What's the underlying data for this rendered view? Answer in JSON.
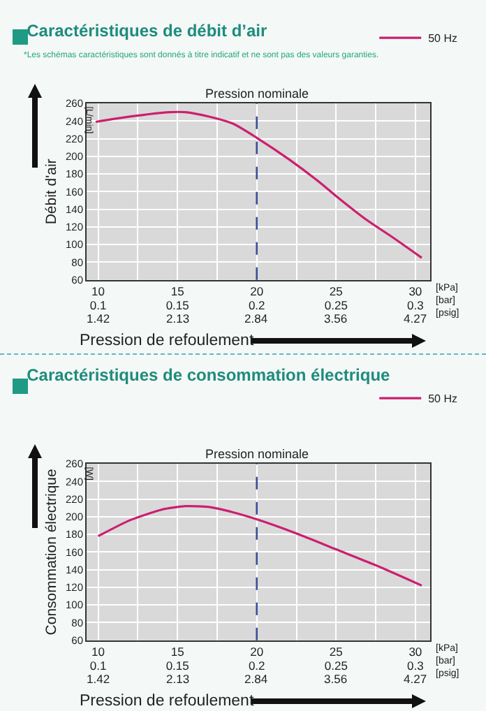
{
  "chart_data": [
    {
      "type": "line",
      "title": "Caractéristiques de débit d’air",
      "xlabel": "Pression de refoulement",
      "ylabel": "Débit d'air",
      "annotations": [
        "*Les schémas caractéristiques sont donnés à titre indicatif et ne sont pas des valeurs garanties.",
        "[L/min]",
        "[kPa]\n[bar]\n[psig]",
        "1.42",
        "2.13",
        "2.84",
        "3.56",
        "4.27"
      ],
      "x": [
        9.85,
        12,
        14.5,
        15.5,
        17,
        18.5,
        20,
        22,
        24,
        25,
        27,
        28.5,
        30.4
      ],
      "series": [
        {
          "name": "50 Hz",
          "color": "#cc1f6e",
          "values": [
            239,
            245,
            250,
            250,
            245,
            237,
            221,
            197,
            170,
            155,
            127,
            109,
            85
          ]
        }
      ],
      "xlim": [
        9.27,
        30.93
      ],
      "ylim": [
        60,
        260
      ],
      "xticks": [
        10,
        15,
        20,
        25,
        30
      ],
      "x2lim": [
        0.0927,
        0.3093
      ],
      "x2ticks": [
        0.1,
        0.15,
        0.2,
        0.25,
        0.3
      ],
      "yticks": [
        60,
        80,
        100,
        120,
        140,
        160,
        180,
        200,
        220,
        240,
        260
      ],
      "ref_lines": [
        {
          "axis": "x",
          "value": 20,
          "label": "Pression nominale",
          "color": "#3a4f9a",
          "line_style": "dashed"
        }
      ],
      "grid": true,
      "legend": "top right",
      "marker": "none",
      "line_style": "solid"
    },
    {
      "type": "line",
      "title": "Caractéristiques de consommation électrique",
      "xlabel": "Pression de refoulement",
      "ylabel": "Consommation électrique",
      "annotations": [
        "[W]",
        "[kPa]\n[bar]\n[psig]",
        "1.42",
        "2.13",
        "2.84",
        "3.56",
        "4.27"
      ],
      "x": [
        10,
        12,
        14,
        15.5,
        17,
        18.5,
        20,
        22.5,
        25,
        27.5,
        30.4
      ],
      "series": [
        {
          "name": "50 Hz",
          "color": "#cc1f6e",
          "values": [
            178,
            196,
            208,
            212,
            211,
            205,
            197,
            181,
            163,
            145,
            122
          ]
        }
      ],
      "xlim": [
        9.27,
        30.93
      ],
      "ylim": [
        60,
        260
      ],
      "xticks": [
        10,
        15,
        20,
        25,
        30
      ],
      "x2lim": [
        0.0927,
        0.3093
      ],
      "x2ticks": [
        0.1,
        0.15,
        0.2,
        0.25,
        0.3
      ],
      "yticks": [
        60,
        80,
        100,
        120,
        140,
        160,
        180,
        200,
        220,
        240,
        260
      ],
      "ref_lines": [
        {
          "axis": "x",
          "value": 20,
          "label": "Pression nominale",
          "color": "#3a4f9a",
          "line_style": "dashed"
        }
      ],
      "grid": true,
      "legend": "top right",
      "marker": "none",
      "line_style": "solid"
    }
  ]
}
